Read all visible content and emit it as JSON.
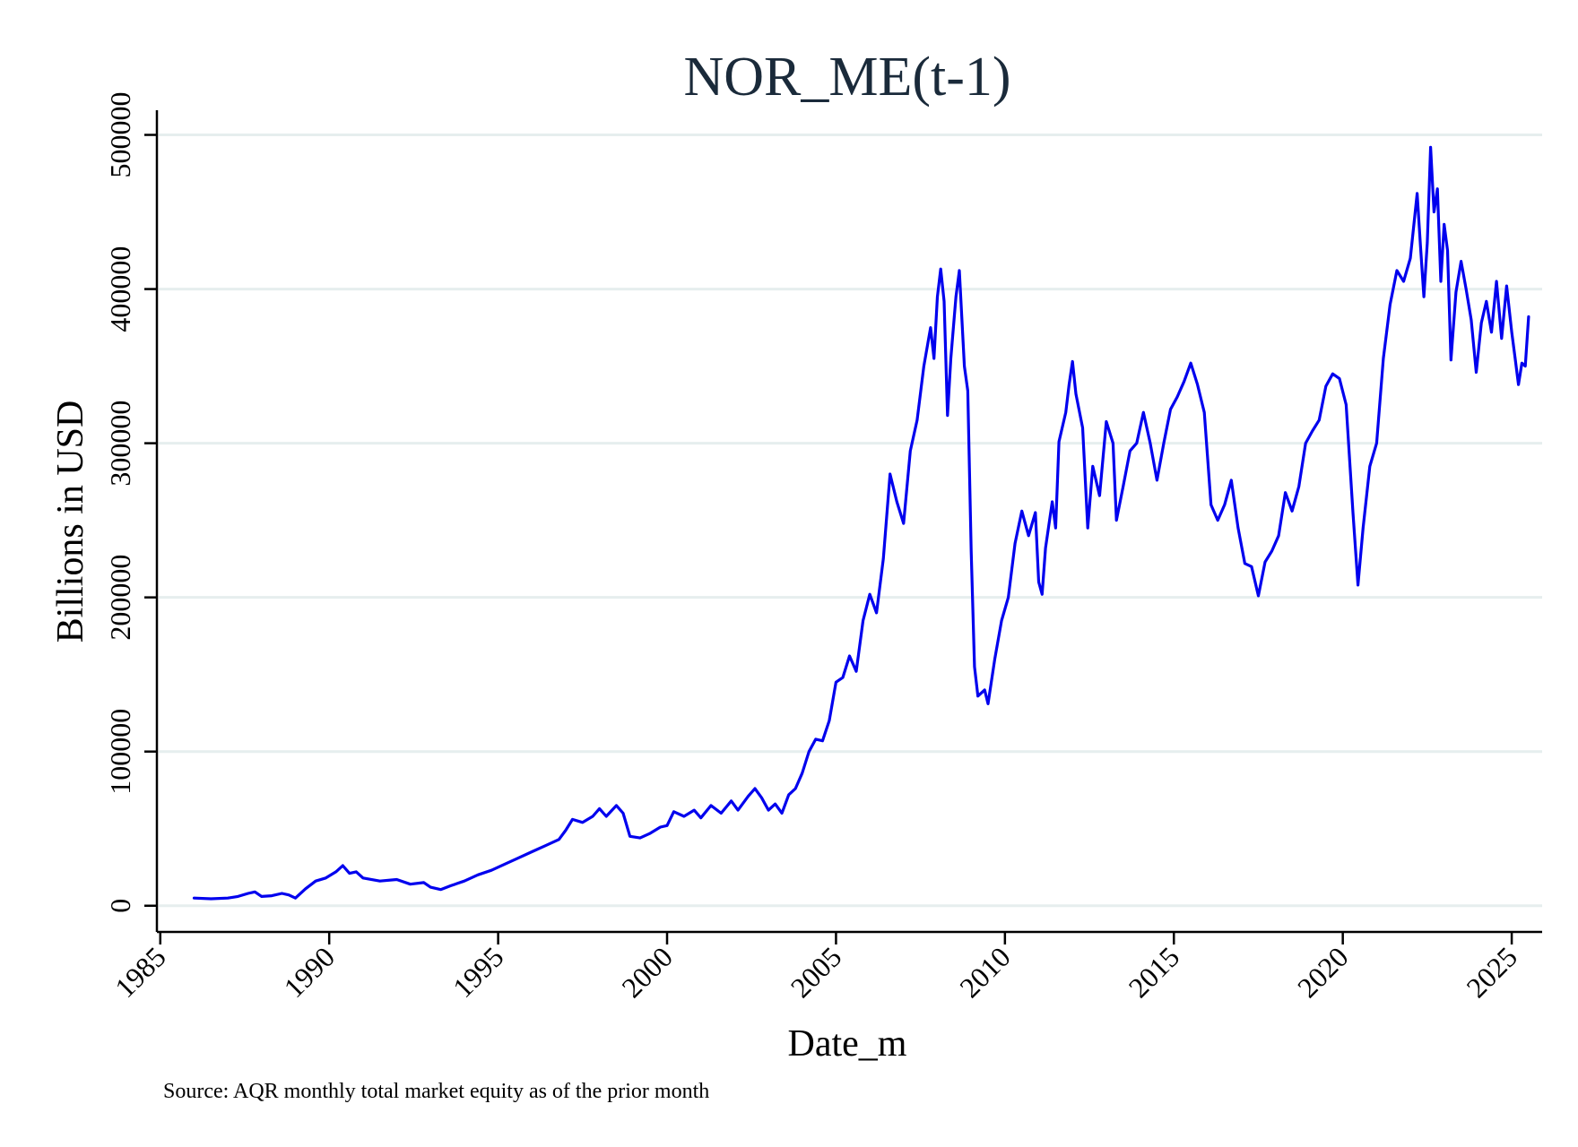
{
  "chart_data": {
    "type": "line",
    "title": "NOR_ME(t-1)",
    "xlabel": "Date_m",
    "ylabel": "Billions in USD",
    "note": "Source: AQR monthly total market equity as of the prior month",
    "xlim": [
      1984.9,
      2025.9
    ],
    "ylim": [
      -17000,
      516000
    ],
    "x_ticks": [
      1985,
      1990,
      1995,
      2000,
      2005,
      2010,
      2015,
      2020,
      2025
    ],
    "x_tick_labels": [
      "1985",
      "1990",
      "1995",
      "2000",
      "2005",
      "2010",
      "2015",
      "2020",
      "2025"
    ],
    "y_ticks": [
      0,
      100000,
      200000,
      300000,
      400000,
      500000
    ],
    "y_tick_labels": [
      "0",
      "100000",
      "200000",
      "300000",
      "400000",
      "500000"
    ],
    "grid": true,
    "legend": false,
    "series": [
      {
        "color": "#0000ee",
        "points": [
          [
            1986.0,
            5000
          ],
          [
            1986.5,
            4500
          ],
          [
            1987.0,
            5000
          ],
          [
            1987.3,
            6000
          ],
          [
            1987.6,
            8000
          ],
          [
            1987.8,
            9000
          ],
          [
            1988.0,
            6000
          ],
          [
            1988.3,
            6500
          ],
          [
            1988.6,
            8000
          ],
          [
            1988.8,
            7000
          ],
          [
            1989.0,
            5000
          ],
          [
            1989.3,
            11000
          ],
          [
            1989.6,
            16000
          ],
          [
            1989.9,
            18000
          ],
          [
            1990.2,
            22000
          ],
          [
            1990.4,
            26000
          ],
          [
            1990.6,
            21000
          ],
          [
            1990.8,
            22000
          ],
          [
            1991.0,
            18000
          ],
          [
            1991.5,
            16000
          ],
          [
            1992.0,
            17000
          ],
          [
            1992.4,
            14000
          ],
          [
            1992.8,
            15000
          ],
          [
            1993.0,
            12000
          ],
          [
            1993.3,
            10500
          ],
          [
            1993.6,
            13000
          ],
          [
            1994.0,
            16000
          ],
          [
            1994.4,
            20000
          ],
          [
            1994.8,
            23000
          ],
          [
            1995.2,
            27000
          ],
          [
            1995.6,
            31000
          ],
          [
            1996.0,
            35000
          ],
          [
            1996.4,
            39000
          ],
          [
            1996.8,
            43000
          ],
          [
            1997.0,
            49000
          ],
          [
            1997.2,
            56000
          ],
          [
            1997.5,
            54000
          ],
          [
            1997.8,
            58000
          ],
          [
            1998.0,
            63000
          ],
          [
            1998.2,
            58000
          ],
          [
            1998.5,
            65000
          ],
          [
            1998.7,
            60000
          ],
          [
            1998.9,
            45000
          ],
          [
            1999.2,
            44000
          ],
          [
            1999.5,
            47000
          ],
          [
            1999.8,
            51000
          ],
          [
            2000.0,
            52000
          ],
          [
            2000.2,
            61000
          ],
          [
            2000.5,
            58000
          ],
          [
            2000.8,
            62000
          ],
          [
            2001.0,
            57000
          ],
          [
            2001.3,
            65000
          ],
          [
            2001.6,
            60000
          ],
          [
            2001.9,
            68000
          ],
          [
            2002.1,
            62000
          ],
          [
            2002.4,
            71000
          ],
          [
            2002.6,
            76000
          ],
          [
            2002.8,
            70000
          ],
          [
            2003.0,
            62000
          ],
          [
            2003.2,
            66000
          ],
          [
            2003.4,
            60000
          ],
          [
            2003.6,
            72000
          ],
          [
            2003.8,
            76000
          ],
          [
            2004.0,
            86000
          ],
          [
            2004.2,
            100000
          ],
          [
            2004.4,
            108000
          ],
          [
            2004.6,
            107000
          ],
          [
            2004.8,
            120000
          ],
          [
            2005.0,
            145000
          ],
          [
            2005.2,
            148000
          ],
          [
            2005.4,
            162000
          ],
          [
            2005.6,
            152000
          ],
          [
            2005.8,
            185000
          ],
          [
            2006.0,
            202000
          ],
          [
            2006.2,
            190000
          ],
          [
            2006.4,
            225000
          ],
          [
            2006.6,
            280000
          ],
          [
            2006.8,
            262000
          ],
          [
            2007.0,
            248000
          ],
          [
            2007.2,
            295000
          ],
          [
            2007.4,
            315000
          ],
          [
            2007.6,
            350000
          ],
          [
            2007.8,
            375000
          ],
          [
            2007.9,
            355000
          ],
          [
            2008.0,
            395000
          ],
          [
            2008.1,
            413000
          ],
          [
            2008.2,
            392000
          ],
          [
            2008.3,
            318000
          ],
          [
            2008.4,
            355000
          ],
          [
            2008.55,
            395000
          ],
          [
            2008.65,
            412000
          ],
          [
            2008.8,
            350000
          ],
          [
            2008.9,
            334000
          ],
          [
            2009.0,
            230000
          ],
          [
            2009.1,
            155000
          ],
          [
            2009.2,
            136000
          ],
          [
            2009.4,
            140000
          ],
          [
            2009.5,
            131000
          ],
          [
            2009.7,
            160000
          ],
          [
            2009.9,
            185000
          ],
          [
            2010.1,
            200000
          ],
          [
            2010.3,
            235000
          ],
          [
            2010.5,
            256000
          ],
          [
            2010.7,
            240000
          ],
          [
            2010.9,
            255000
          ],
          [
            2011.0,
            210000
          ],
          [
            2011.1,
            202000
          ],
          [
            2011.2,
            232000
          ],
          [
            2011.4,
            262000
          ],
          [
            2011.5,
            245000
          ],
          [
            2011.6,
            301000
          ],
          [
            2011.8,
            320000
          ],
          [
            2011.9,
            338000
          ],
          [
            2012.0,
            353000
          ],
          [
            2012.1,
            332000
          ],
          [
            2012.3,
            310000
          ],
          [
            2012.45,
            245000
          ],
          [
            2012.6,
            285000
          ],
          [
            2012.8,
            266000
          ],
          [
            2013.0,
            314000
          ],
          [
            2013.2,
            300000
          ],
          [
            2013.3,
            250000
          ],
          [
            2013.5,
            272000
          ],
          [
            2013.7,
            295000
          ],
          [
            2013.9,
            300000
          ],
          [
            2014.1,
            320000
          ],
          [
            2014.3,
            300000
          ],
          [
            2014.5,
            276000
          ],
          [
            2014.7,
            300000
          ],
          [
            2014.9,
            322000
          ],
          [
            2015.1,
            330000
          ],
          [
            2015.3,
            340000
          ],
          [
            2015.5,
            352000
          ],
          [
            2015.7,
            338000
          ],
          [
            2015.9,
            320000
          ],
          [
            2016.1,
            260000
          ],
          [
            2016.3,
            250000
          ],
          [
            2016.5,
            260000
          ],
          [
            2016.7,
            276000
          ],
          [
            2016.9,
            245000
          ],
          [
            2017.1,
            222000
          ],
          [
            2017.3,
            220000
          ],
          [
            2017.5,
            201000
          ],
          [
            2017.7,
            223000
          ],
          [
            2017.9,
            230000
          ],
          [
            2018.1,
            240000
          ],
          [
            2018.3,
            268000
          ],
          [
            2018.5,
            256000
          ],
          [
            2018.7,
            272000
          ],
          [
            2018.9,
            300000
          ],
          [
            2019.1,
            308000
          ],
          [
            2019.3,
            315000
          ],
          [
            2019.5,
            337000
          ],
          [
            2019.7,
            345000
          ],
          [
            2019.9,
            342000
          ],
          [
            2020.1,
            325000
          ],
          [
            2020.3,
            255000
          ],
          [
            2020.45,
            208000
          ],
          [
            2020.6,
            245000
          ],
          [
            2020.8,
            285000
          ],
          [
            2021.0,
            300000
          ],
          [
            2021.2,
            355000
          ],
          [
            2021.4,
            390000
          ],
          [
            2021.6,
            412000
          ],
          [
            2021.8,
            405000
          ],
          [
            2022.0,
            420000
          ],
          [
            2022.2,
            462000
          ],
          [
            2022.3,
            428000
          ],
          [
            2022.4,
            395000
          ],
          [
            2022.5,
            430000
          ],
          [
            2022.6,
            492000
          ],
          [
            2022.7,
            450000
          ],
          [
            2022.8,
            465000
          ],
          [
            2022.9,
            405000
          ],
          [
            2023.0,
            442000
          ],
          [
            2023.1,
            425000
          ],
          [
            2023.2,
            354000
          ],
          [
            2023.35,
            398000
          ],
          [
            2023.5,
            418000
          ],
          [
            2023.65,
            400000
          ],
          [
            2023.8,
            380000
          ],
          [
            2023.95,
            346000
          ],
          [
            2024.1,
            378000
          ],
          [
            2024.25,
            392000
          ],
          [
            2024.4,
            372000
          ],
          [
            2024.55,
            405000
          ],
          [
            2024.7,
            368000
          ],
          [
            2024.85,
            402000
          ],
          [
            2025.0,
            372000
          ],
          [
            2025.1,
            355000
          ],
          [
            2025.2,
            338000
          ],
          [
            2025.3,
            352000
          ],
          [
            2025.4,
            350000
          ],
          [
            2025.5,
            382000
          ]
        ]
      }
    ]
  }
}
